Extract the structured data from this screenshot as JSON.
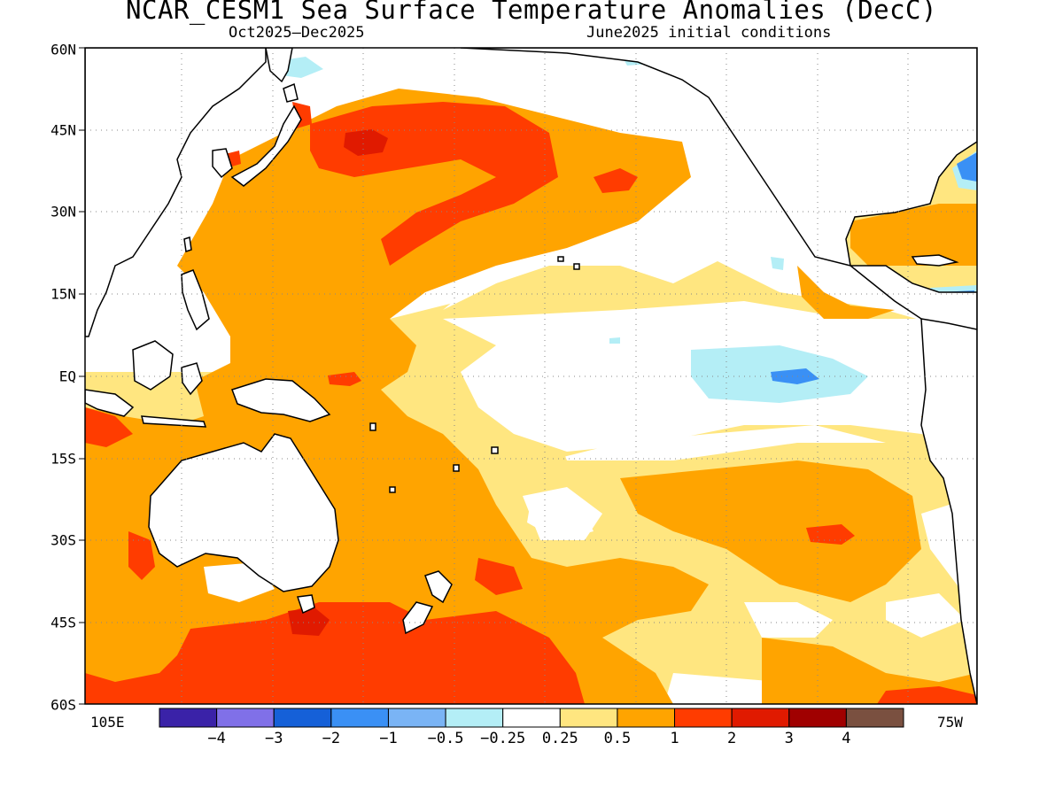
{
  "title": "NCAR_CESM1 Sea Surface Temperature Anomalies (DecC)",
  "subtitle_period": "Oct2025–Dec2025",
  "subtitle_init": "June2025 initial conditions",
  "lat_labels": [
    "60N",
    "45N",
    "30N",
    "15N",
    "EQ",
    "15S",
    "30S",
    "45S",
    "60S"
  ],
  "lon_labels": {
    "left": "105E",
    "right": "75W"
  },
  "colorbar": {
    "colors": [
      "#3a22a8",
      "#8070e8",
      "#1560d8",
      "#3a90f5",
      "#7ab4f5",
      "#b4eef6",
      "#ffffff",
      "#ffe680",
      "#ffa400",
      "#ff3c00",
      "#e01a00",
      "#a00000",
      "#7a5040"
    ],
    "labels": [
      "−4",
      "−3",
      "−2",
      "−1",
      "−0.5",
      "−0.25",
      "0.25",
      "0.5",
      "1",
      "2",
      "3",
      "4"
    ]
  }
}
